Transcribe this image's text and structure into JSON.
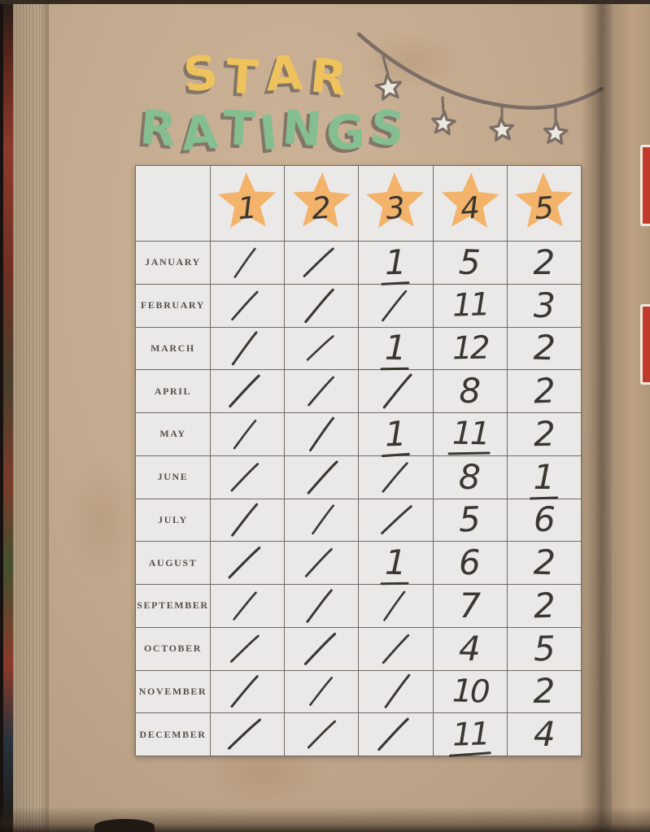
{
  "page": {
    "title": {
      "line1": "STAR",
      "line2": "RATINGS"
    },
    "colors": {
      "title_line1": "#eec25c",
      "title_line2": "#85be90",
      "title_shadow": "#837669",
      "page_kraft": "#c3a98d",
      "table_cell_bg": "#eae9e7",
      "table_border": "#6f6a62",
      "star_orange": "#f3b36b",
      "garland_line": "#7b6e67",
      "garland_star_fill": "#ebe8de",
      "ink": "#3a3731",
      "month_label": "#57504a",
      "edge_fragment_red": "#c13a2c"
    }
  },
  "decorations": {
    "garland": {
      "hanging_star_count": 4
    }
  },
  "table": {
    "header": {
      "rating_values": [
        "1",
        "2",
        "3",
        "4",
        "5"
      ]
    },
    "rows": [
      {
        "month": "JANUARY",
        "cells": [
          {
            "mark": "slash"
          },
          {
            "mark": "slash"
          },
          {
            "value": "1",
            "underlined": true
          },
          {
            "value": "5"
          },
          {
            "value": "2"
          }
        ]
      },
      {
        "month": "FEBRUARY",
        "cells": [
          {
            "mark": "slash"
          },
          {
            "mark": "slash"
          },
          {
            "mark": "slash"
          },
          {
            "value": "11"
          },
          {
            "value": "3"
          }
        ]
      },
      {
        "month": "MARCH",
        "cells": [
          {
            "mark": "slash"
          },
          {
            "mark": "slash"
          },
          {
            "value": "1",
            "underlined": true
          },
          {
            "value": "12"
          },
          {
            "value": "2"
          }
        ]
      },
      {
        "month": "APRIL",
        "cells": [
          {
            "mark": "slash"
          },
          {
            "mark": "slash"
          },
          {
            "mark": "slash"
          },
          {
            "value": "8"
          },
          {
            "value": "2"
          }
        ]
      },
      {
        "month": "MAY",
        "cells": [
          {
            "mark": "slash"
          },
          {
            "mark": "slash"
          },
          {
            "value": "1",
            "underlined": true
          },
          {
            "value": "11",
            "underlined": true
          },
          {
            "value": "2"
          }
        ]
      },
      {
        "month": "JUNE",
        "cells": [
          {
            "mark": "slash"
          },
          {
            "mark": "slash"
          },
          {
            "mark": "slash"
          },
          {
            "value": "8"
          },
          {
            "value": "1",
            "underlined": true
          }
        ]
      },
      {
        "month": "JULY",
        "cells": [
          {
            "mark": "slash"
          },
          {
            "mark": "slash"
          },
          {
            "mark": "slash"
          },
          {
            "value": "5"
          },
          {
            "value": "6"
          }
        ]
      },
      {
        "month": "AUGUST",
        "cells": [
          {
            "mark": "slash"
          },
          {
            "mark": "slash"
          },
          {
            "value": "1",
            "underlined": true
          },
          {
            "value": "6"
          },
          {
            "value": "2"
          }
        ]
      },
      {
        "month": "SEPTEMBER",
        "cells": [
          {
            "mark": "slash"
          },
          {
            "mark": "slash"
          },
          {
            "mark": "slash"
          },
          {
            "value": "7"
          },
          {
            "value": "2"
          }
        ]
      },
      {
        "month": "OCTOBER",
        "cells": [
          {
            "mark": "slash"
          },
          {
            "mark": "slash"
          },
          {
            "mark": "slash"
          },
          {
            "value": "4"
          },
          {
            "value": "5"
          }
        ]
      },
      {
        "month": "NOVEMBER",
        "cells": [
          {
            "mark": "slash"
          },
          {
            "mark": "slash"
          },
          {
            "mark": "slash"
          },
          {
            "value": "10"
          },
          {
            "value": "2"
          }
        ]
      },
      {
        "month": "DECEMBER",
        "cells": [
          {
            "mark": "slash"
          },
          {
            "mark": "slash"
          },
          {
            "mark": "slash"
          },
          {
            "value": "11",
            "underlined": true
          },
          {
            "value": "4"
          }
        ]
      }
    ]
  }
}
